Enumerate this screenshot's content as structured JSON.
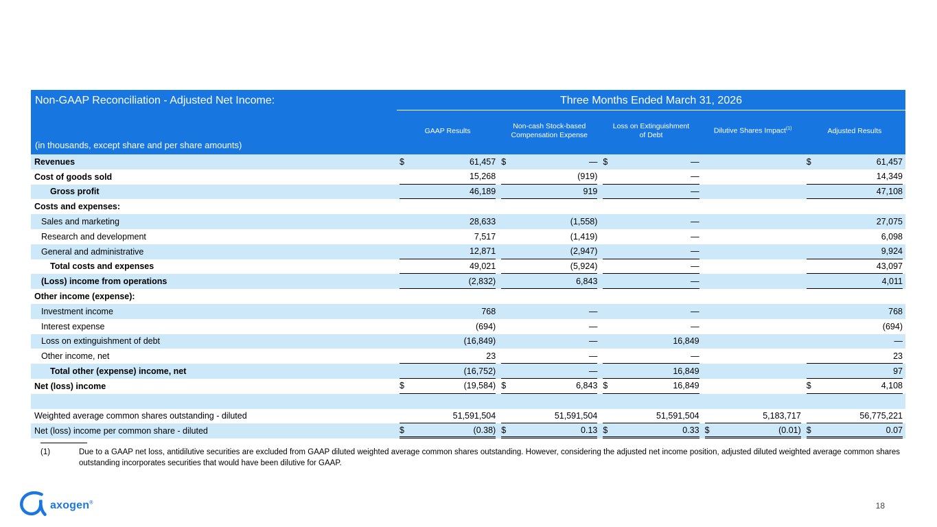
{
  "colors": {
    "header_blue": "#1876E1",
    "row_light_blue": "#CDE9F9",
    "logo_blue": "#1B76E0"
  },
  "header": {
    "title": "Non-GAAP Reconciliation - Adjusted Net Income:",
    "period": "Three Months Ended March 31, 2026",
    "subtitle": "(in thousands, except share and per share amounts)",
    "dilutive_sup": "(1)"
  },
  "table": {
    "columns": [
      "GAAP Results",
      "Non-cash Stock-based Compensation Expense",
      "Loss on Extinguishment of Debt",
      "Dilutive Shares Impact",
      "Adjusted Results"
    ],
    "rows": [
      {
        "label": "Revenues",
        "bold": true,
        "indent": 0,
        "cells": [
          {
            "d": "$",
            "v": "61,457"
          },
          {
            "d": "$",
            "v": "—"
          },
          {
            "d": "$",
            "v": "—"
          },
          {},
          {
            "d": "$",
            "v": "61,457"
          }
        ]
      },
      {
        "label": "Cost of goods sold",
        "bold": true,
        "indent": 0,
        "cells": [
          {
            "v": "15,268",
            "u": 1
          },
          {
            "v": "(919)",
            "u": 1
          },
          {
            "v": "—",
            "u": 1
          },
          {},
          {
            "v": "14,349",
            "u": 1
          }
        ]
      },
      {
        "label": "Gross profit",
        "bold": true,
        "indent": 2,
        "cells": [
          {
            "v": "46,189",
            "u": 1
          },
          {
            "v": "919",
            "u": 1
          },
          {
            "v": "—",
            "u": 1
          },
          {},
          {
            "v": "47,108",
            "u": 1
          }
        ]
      },
      {
        "label": "Costs and expenses:",
        "bold": true,
        "indent": 0,
        "cells": [
          {},
          {},
          {},
          {},
          {}
        ]
      },
      {
        "label": "Sales and marketing",
        "bold": false,
        "indent": 1,
        "cells": [
          {
            "v": "28,633"
          },
          {
            "v": "(1,558)"
          },
          {
            "v": "—"
          },
          {},
          {
            "v": "27,075"
          }
        ]
      },
      {
        "label": "Research and development",
        "bold": false,
        "indent": 1,
        "cells": [
          {
            "v": "7,517"
          },
          {
            "v": "(1,419)"
          },
          {
            "v": "—"
          },
          {},
          {
            "v": "6,098"
          }
        ]
      },
      {
        "label": "General and administrative",
        "bold": false,
        "indent": 1,
        "cells": [
          {
            "v": "12,871",
            "u": 1
          },
          {
            "v": "(2,947)",
            "u": 1
          },
          {
            "v": "—",
            "u": 1
          },
          {},
          {
            "v": "9,924",
            "u": 1
          }
        ]
      },
      {
        "label": "Total costs and expenses",
        "bold": true,
        "indent": 2,
        "cells": [
          {
            "v": "49,021",
            "u": 1
          },
          {
            "v": "(5,924)",
            "u": 1
          },
          {
            "v": "—",
            "u": 1
          },
          {},
          {
            "v": "43,097",
            "u": 1
          }
        ]
      },
      {
        "label": "(Loss) income from operations",
        "bold": true,
        "indent": 1,
        "cells": [
          {
            "v": "(2,832)",
            "u": 1
          },
          {
            "v": "6,843",
            "u": 1
          },
          {
            "v": "—",
            "u": 1
          },
          {},
          {
            "v": "4,011",
            "u": 1
          }
        ]
      },
      {
        "label": "Other income (expense):",
        "bold": true,
        "indent": 0,
        "cells": [
          {},
          {},
          {},
          {},
          {}
        ]
      },
      {
        "label": "Investment income",
        "bold": false,
        "indent": 1,
        "cells": [
          {
            "v": "768"
          },
          {
            "v": "—"
          },
          {
            "v": "—"
          },
          {},
          {
            "v": "768"
          }
        ]
      },
      {
        "label": "Interest expense",
        "bold": false,
        "indent": 1,
        "cells": [
          {
            "v": "(694)"
          },
          {
            "v": "—"
          },
          {
            "v": "—"
          },
          {},
          {
            "v": "(694)"
          }
        ]
      },
      {
        "label": "Loss on extinguishment of debt",
        "bold": false,
        "indent": 1,
        "cells": [
          {
            "v": "(16,849)"
          },
          {
            "v": "—"
          },
          {
            "v": "16,849"
          },
          {},
          {
            "v": "—"
          }
        ]
      },
      {
        "label": "Other income, net",
        "bold": false,
        "indent": 1,
        "cells": [
          {
            "v": "23",
            "u": 1
          },
          {
            "v": "—",
            "u": 1
          },
          {
            "v": "—",
            "u": 1
          },
          {},
          {
            "v": "23",
            "u": 1
          }
        ]
      },
      {
        "label": "Total other (expense) income, net",
        "bold": true,
        "indent": 2,
        "cells": [
          {
            "v": "(16,752)",
            "u": 1
          },
          {
            "v": "—",
            "u": 1
          },
          {
            "v": "16,849",
            "u": 1
          },
          {},
          {
            "v": "97",
            "u": 1
          }
        ]
      },
      {
        "label": "Net (loss) income",
        "bold": true,
        "indent": 0,
        "cells": [
          {
            "d": "$",
            "v": "(19,584)",
            "u": 1
          },
          {
            "d": "$",
            "v": "6,843",
            "u": 1
          },
          {
            "d": "$",
            "v": "16,849",
            "u": 1
          },
          {},
          {
            "d": "$",
            "v": "4,108",
            "u": 1
          }
        ]
      },
      {
        "label": "",
        "bold": false,
        "indent": 0,
        "cells": [
          {},
          {},
          {},
          {},
          {}
        ]
      },
      {
        "label": "Weighted average common shares outstanding - diluted",
        "bold": false,
        "indent": 0,
        "cells": [
          {
            "v": "51,591,504",
            "u": 1
          },
          {
            "v": "51,591,504",
            "u": 1
          },
          {
            "v": "51,591,504",
            "u": 1
          },
          {
            "v": "5,183,717",
            "u": 1
          },
          {
            "v": "56,775,221",
            "u": 1
          }
        ]
      },
      {
        "label": "Net (loss) income per common share - diluted",
        "bold": false,
        "indent": 0,
        "cells": [
          {
            "d": "$",
            "v": "(0.38)",
            "u": 2
          },
          {
            "d": "$",
            "v": "0.13",
            "u": 2
          },
          {
            "d": "$",
            "v": "0.33",
            "u": 2
          },
          {
            "d": "$",
            "v": "(0.01)",
            "u": 2
          },
          {
            "d": "$",
            "v": "0.07",
            "u": 2
          }
        ]
      }
    ]
  },
  "footnote": {
    "marker": "(1)",
    "text": "Due to a GAAP net loss, antidilutive securities are excluded from GAAP diluted weighted average common shares outstanding. However, considering the adjusted net income position, adjusted diluted weighted average common shares outstanding incorporates securities that would have been dilutive for GAAP."
  },
  "footer": {
    "logo_text": "axogen",
    "logo_mark": "®",
    "page_number": "18"
  }
}
